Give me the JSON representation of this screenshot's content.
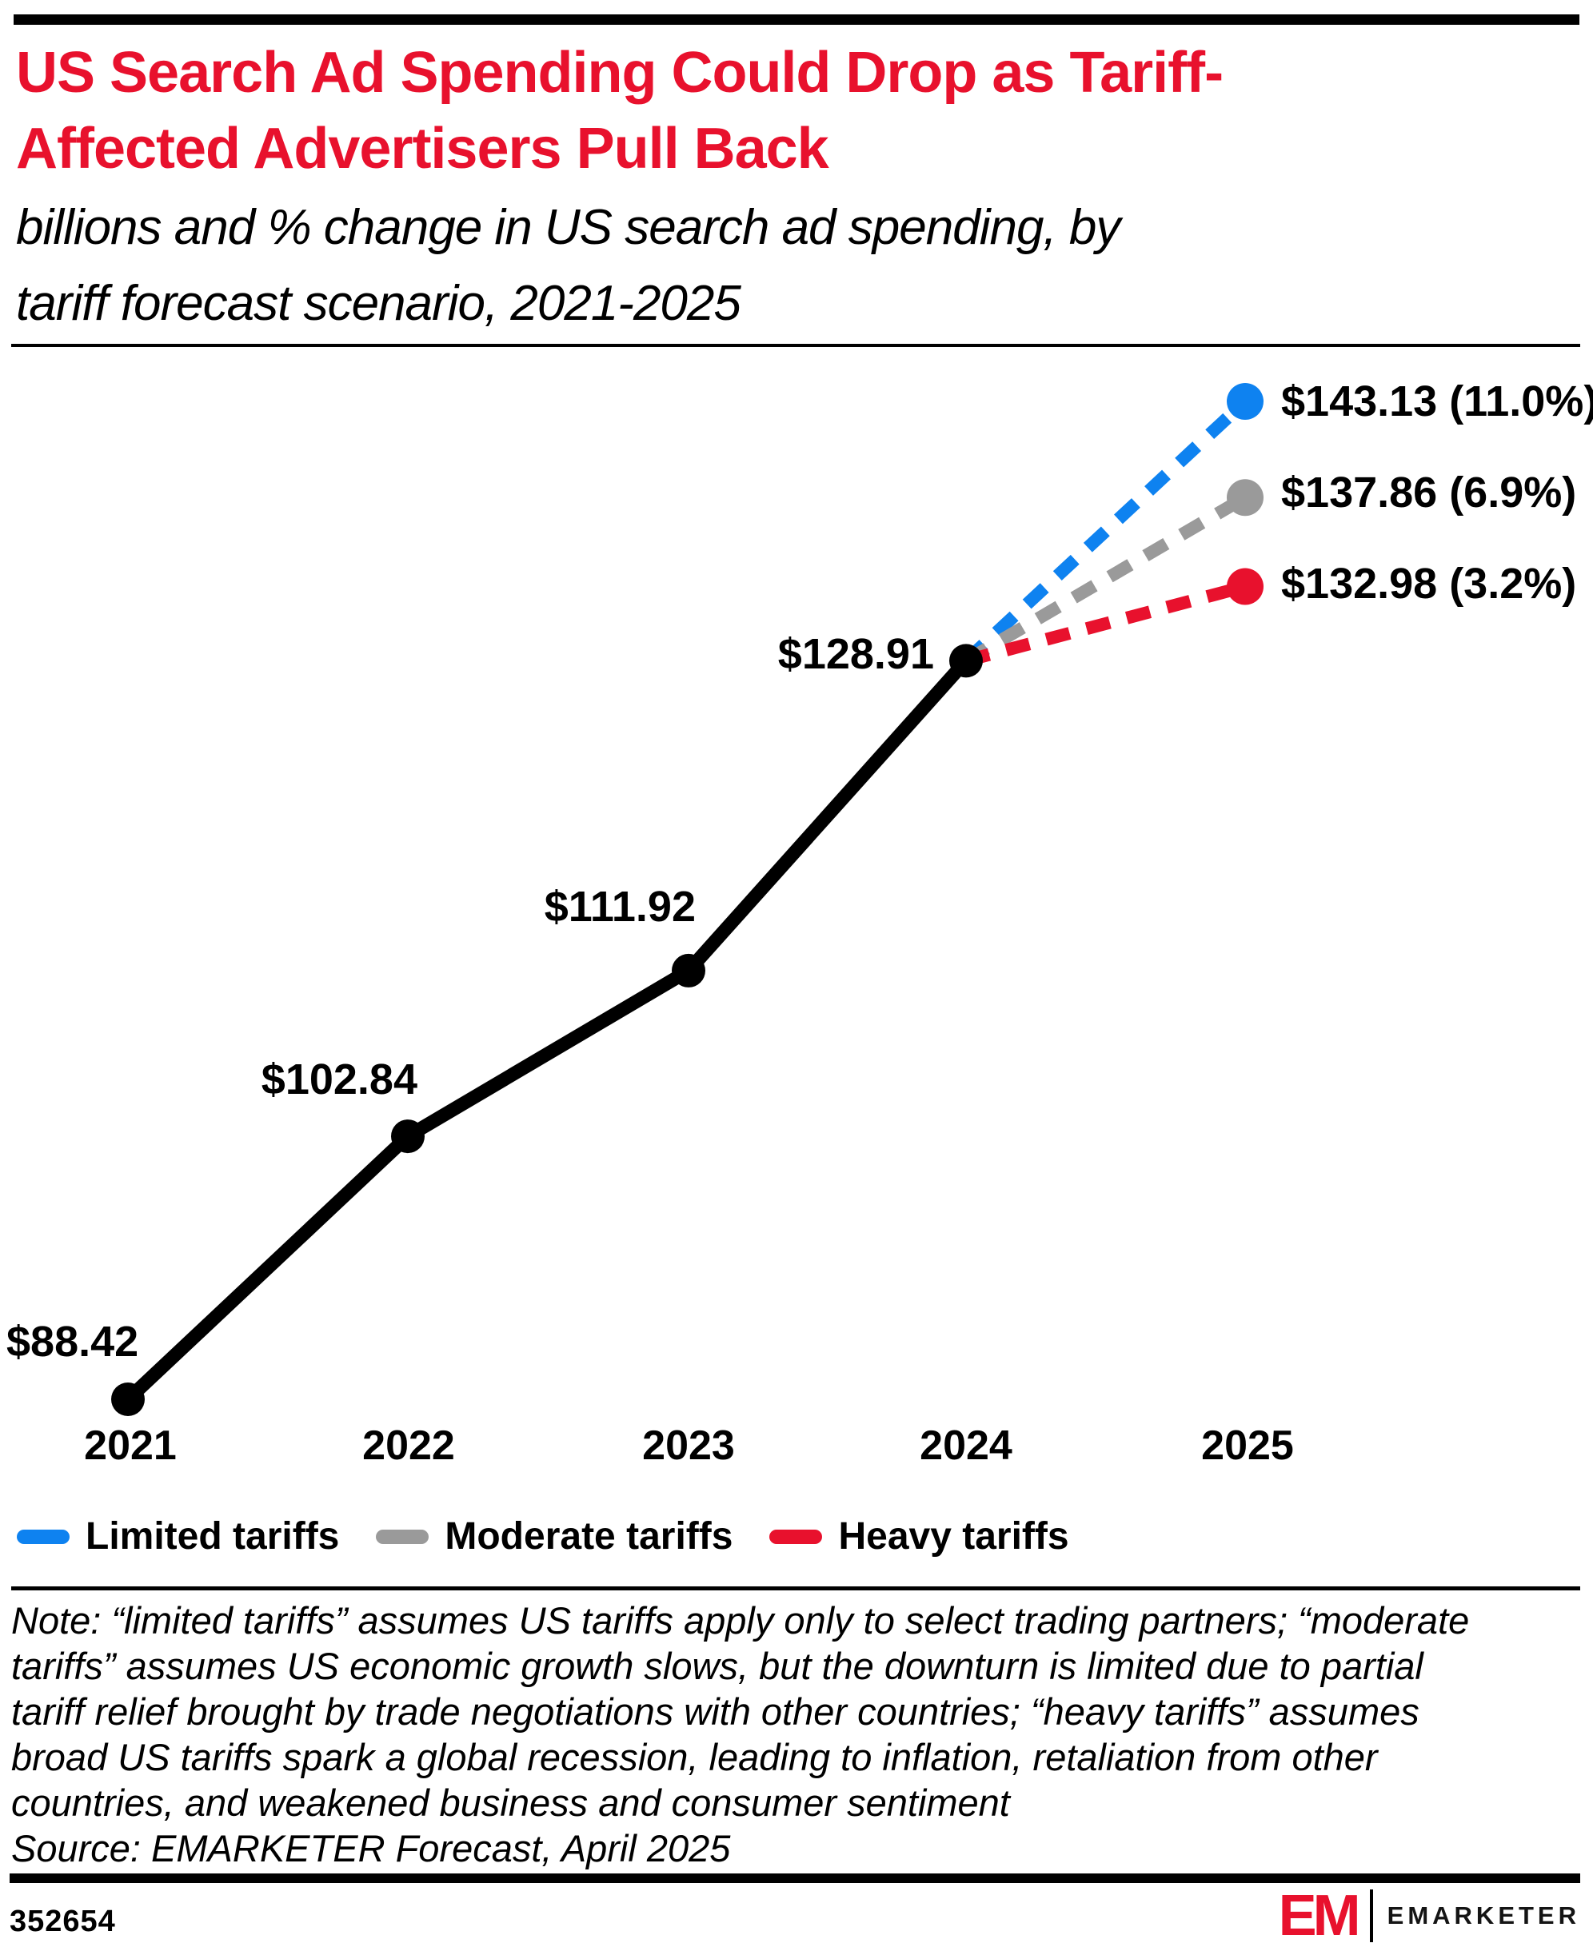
{
  "header": {
    "title_line1": "US Search Ad Spending Could Drop as Tariff-",
    "title_line2": "Affected Advertisers Pull Back",
    "subtitle_line1": "billions and % change in US search ad spending, by",
    "subtitle_line2": "tariff forecast scenario, 2021-2025",
    "title_color": "#e8112d"
  },
  "chart_data": {
    "type": "line",
    "title": "US Search Ad Spending Could Drop as Tariff-Affected Advertisers Pull Back",
    "subtitle": "billions and % change in US search ad spending, by tariff forecast scenario, 2021-2025",
    "unit": "billions of US dollars",
    "categories": [
      "2021",
      "2022",
      "2023",
      "2024",
      "2025"
    ],
    "grid": false,
    "legend_position": "bottom",
    "ylim": [
      85,
      150
    ],
    "actual": {
      "name": "US search ad spending (actual/forecast base)",
      "years": [
        2021,
        2022,
        2023,
        2024
      ],
      "values": [
        88.42,
        102.84,
        111.92,
        128.91
      ],
      "labels": [
        "$88.42",
        "$102.84",
        "$111.92",
        "$128.91"
      ],
      "color": "#000000",
      "style": "solid"
    },
    "scenarios": [
      {
        "name": "Limited tariffs",
        "year": 2025,
        "value": 143.13,
        "pct_change": 11.0,
        "label": "$143.13 (11.0%)",
        "color": "#0e82f0",
        "style": "dashed"
      },
      {
        "name": "Moderate tariffs",
        "year": 2025,
        "value": 137.86,
        "pct_change": 6.9,
        "label": "$137.86 (6.9%)",
        "color": "#9a9a9a",
        "style": "dashed"
      },
      {
        "name": "Heavy tariffs",
        "year": 2025,
        "value": 132.98,
        "pct_change": 3.2,
        "label": "$132.98 (3.2%)",
        "color": "#e8112d",
        "style": "dashed"
      }
    ]
  },
  "legend": {
    "items": [
      {
        "label": "Limited tariffs",
        "color": "#0e82f0"
      },
      {
        "label": "Moderate tariffs",
        "color": "#9a9a9a"
      },
      {
        "label": "Heavy tariffs",
        "color": "#e8112d"
      }
    ]
  },
  "note": {
    "lines": [
      "Note: “limited tariffs” assumes US tariffs apply only to select trading partners; “moderate",
      "tariffs” assumes US economic growth slows, but the downturn is limited due to partial",
      "tariff relief brought by trade negotiations with other countries; “heavy tariffs” assumes",
      "broad US tariffs spark a global recession, leading to inflation, retaliation from other",
      "countries, and weakened business and consumer sentiment"
    ],
    "source": "Source: EMARKETER Forecast, April 2025"
  },
  "footer": {
    "chart_id": "352654",
    "brand_monogram": "EM",
    "brand_name": "EMARKETER"
  }
}
